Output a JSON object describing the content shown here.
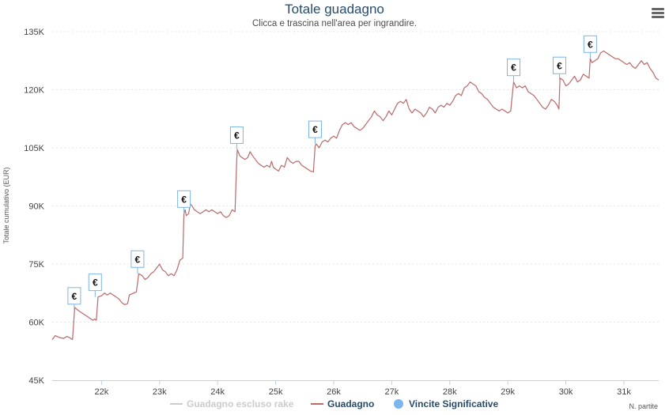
{
  "chart_data": {
    "type": "line",
    "title": "Totale guadagno",
    "subtitle": "Clicca e trascina nell'area per ingrandire.",
    "ylabel": "Totale cumulativo (EUR)",
    "xlabel": "N. partite",
    "ylim": [
      45000,
      135000
    ],
    "xlim": [
      21150,
      31600
    ],
    "y_ticks": [
      "45K",
      "60K",
      "75K",
      "90K",
      "105K",
      "120K",
      "135K"
    ],
    "y_tick_values": [
      45000,
      60000,
      75000,
      90000,
      105000,
      120000,
      135000
    ],
    "x_ticks": [
      "22k",
      "23k",
      "24k",
      "25k",
      "26k",
      "27k",
      "28k",
      "29k",
      "30k",
      "31k"
    ],
    "x_tick_values": [
      22000,
      23000,
      24000,
      25000,
      26000,
      27000,
      28000,
      29000,
      30000,
      31000
    ],
    "grid": "horizontal dashed",
    "legend_position": "bottom",
    "series": [
      {
        "name": "Guadagno escluso rake",
        "color": "#cccccc",
        "hidden": true,
        "values": []
      },
      {
        "name": "Guadagno",
        "color": "#b96a6a",
        "points": [
          [
            21150,
            55500
          ],
          [
            21200,
            56500
          ],
          [
            21280,
            56000
          ],
          [
            21350,
            55800
          ],
          [
            21400,
            56300
          ],
          [
            21450,
            56000
          ],
          [
            21500,
            55500
          ],
          [
            21530,
            62000
          ],
          [
            21540,
            63800
          ],
          [
            21600,
            63000
          ],
          [
            21650,
            62500
          ],
          [
            21700,
            62000
          ],
          [
            21750,
            61500
          ],
          [
            21800,
            61000
          ],
          [
            21850,
            60500
          ],
          [
            21880,
            60800
          ],
          [
            21910,
            60500
          ],
          [
            21940,
            66500
          ],
          [
            22000,
            66800
          ],
          [
            22050,
            67500
          ],
          [
            22100,
            67000
          ],
          [
            22150,
            67500
          ],
          [
            22200,
            67000
          ],
          [
            22250,
            66500
          ],
          [
            22300,
            66000
          ],
          [
            22350,
            65000
          ],
          [
            22400,
            64500
          ],
          [
            22450,
            64800
          ],
          [
            22480,
            67000
          ],
          [
            22550,
            67500
          ],
          [
            22600,
            67800
          ],
          [
            22620,
            70000
          ],
          [
            22640,
            72500
          ],
          [
            22700,
            72000
          ],
          [
            22750,
            71000
          ],
          [
            22800,
            71500
          ],
          [
            22850,
            72500
          ],
          [
            22900,
            73000
          ],
          [
            22950,
            74000
          ],
          [
            23000,
            75000
          ],
          [
            23050,
            73500
          ],
          [
            23100,
            73000
          ],
          [
            23150,
            72000
          ],
          [
            23200,
            72500
          ],
          [
            23250,
            72000
          ],
          [
            23300,
            73500
          ],
          [
            23350,
            76000
          ],
          [
            23400,
            76500
          ],
          [
            23420,
            88000
          ],
          [
            23440,
            89000
          ],
          [
            23460,
            87500
          ],
          [
            23500,
            88000
          ],
          [
            23530,
            90500
          ],
          [
            23560,
            90000
          ],
          [
            23600,
            89000
          ],
          [
            23650,
            88500
          ],
          [
            23700,
            88000
          ],
          [
            23750,
            88500
          ],
          [
            23800,
            89000
          ],
          [
            23850,
            88500
          ],
          [
            23900,
            89000
          ],
          [
            23950,
            88500
          ],
          [
            24000,
            88000
          ],
          [
            24050,
            88500
          ],
          [
            24100,
            87500
          ],
          [
            24150,
            87000
          ],
          [
            24200,
            87500
          ],
          [
            24250,
            89000
          ],
          [
            24300,
            88500
          ],
          [
            24330,
            102000
          ],
          [
            24340,
            104500
          ],
          [
            24380,
            103000
          ],
          [
            24420,
            102500
          ],
          [
            24470,
            102000
          ],
          [
            24520,
            102500
          ],
          [
            24560,
            104000
          ],
          [
            24600,
            103000
          ],
          [
            24650,
            102000
          ],
          [
            24700,
            101000
          ],
          [
            24750,
            100500
          ],
          [
            24800,
            100000
          ],
          [
            24850,
            100500
          ],
          [
            24900,
            100000
          ],
          [
            24930,
            101500
          ],
          [
            24960,
            100000
          ],
          [
            25000,
            99500
          ],
          [
            25050,
            99000
          ],
          [
            25100,
            100500
          ],
          [
            25150,
            100000
          ],
          [
            25200,
            102500
          ],
          [
            25250,
            101500
          ],
          [
            25300,
            101000
          ],
          [
            25350,
            101500
          ],
          [
            25400,
            101500
          ],
          [
            25450,
            100500
          ],
          [
            25500,
            100000
          ],
          [
            25550,
            99500
          ],
          [
            25600,
            99000
          ],
          [
            25650,
            98800
          ],
          [
            25680,
            105500
          ],
          [
            25700,
            106000
          ],
          [
            25750,
            105000
          ],
          [
            25800,
            106500
          ],
          [
            25850,
            107000
          ],
          [
            25900,
            106500
          ],
          [
            25950,
            107500
          ],
          [
            26000,
            108000
          ],
          [
            26050,
            107500
          ],
          [
            26100,
            109500
          ],
          [
            26150,
            111000
          ],
          [
            26200,
            111500
          ],
          [
            26250,
            111000
          ],
          [
            26300,
            111500
          ],
          [
            26350,
            110500
          ],
          [
            26400,
            110000
          ],
          [
            26450,
            109500
          ],
          [
            26500,
            110000
          ],
          [
            26550,
            111000
          ],
          [
            26600,
            112000
          ],
          [
            26650,
            113000
          ],
          [
            26700,
            114500
          ],
          [
            26750,
            113500
          ],
          [
            26800,
            113000
          ],
          [
            26850,
            112000
          ],
          [
            26900,
            113000
          ],
          [
            26950,
            114500
          ],
          [
            27000,
            113500
          ],
          [
            27050,
            115000
          ],
          [
            27100,
            116500
          ],
          [
            27150,
            117000
          ],
          [
            27200,
            116500
          ],
          [
            27250,
            117500
          ],
          [
            27300,
            115000
          ],
          [
            27350,
            114000
          ],
          [
            27400,
            115000
          ],
          [
            27450,
            114500
          ],
          [
            27500,
            114000
          ],
          [
            27550,
            113000
          ],
          [
            27600,
            114000
          ],
          [
            27650,
            115500
          ],
          [
            27700,
            115000
          ],
          [
            27750,
            114000
          ],
          [
            27800,
            115500
          ],
          [
            27850,
            116000
          ],
          [
            27900,
            115500
          ],
          [
            27950,
            116500
          ],
          [
            28000,
            116000
          ],
          [
            28050,
            117000
          ],
          [
            28100,
            118500
          ],
          [
            28150,
            119000
          ],
          [
            28200,
            118500
          ],
          [
            28250,
            120500
          ],
          [
            28300,
            121000
          ],
          [
            28350,
            122000
          ],
          [
            28400,
            121500
          ],
          [
            28450,
            121000
          ],
          [
            28500,
            119500
          ],
          [
            28550,
            119000
          ],
          [
            28600,
            118000
          ],
          [
            28650,
            117500
          ],
          [
            28700,
            116500
          ],
          [
            28750,
            115500
          ],
          [
            28800,
            115000
          ],
          [
            28850,
            114500
          ],
          [
            28900,
            115000
          ],
          [
            28950,
            114500
          ],
          [
            29000,
            114000
          ],
          [
            29050,
            114500
          ],
          [
            29100,
            122000
          ],
          [
            29150,
            120500
          ],
          [
            29200,
            121000
          ],
          [
            29250,
            120500
          ],
          [
            29300,
            121000
          ],
          [
            29350,
            119500
          ],
          [
            29400,
            119000
          ],
          [
            29450,
            118500
          ],
          [
            29500,
            117500
          ],
          [
            29550,
            116500
          ],
          [
            29600,
            115500
          ],
          [
            29650,
            115000
          ],
          [
            29700,
            116000
          ],
          [
            29750,
            117500
          ],
          [
            29800,
            117000
          ],
          [
            29850,
            116000
          ],
          [
            29880,
            115000
          ],
          [
            29900,
            123000
          ],
          [
            29950,
            122500
          ],
          [
            30000,
            121000
          ],
          [
            30050,
            121500
          ],
          [
            30100,
            122500
          ],
          [
            30150,
            123500
          ],
          [
            30200,
            122000
          ],
          [
            30250,
            122500
          ],
          [
            30300,
            124000
          ],
          [
            30350,
            123500
          ],
          [
            30400,
            123000
          ],
          [
            30420,
            128000
          ],
          [
            30450,
            127000
          ],
          [
            30500,
            127500
          ],
          [
            30550,
            128000
          ],
          [
            30600,
            129500
          ],
          [
            30650,
            130000
          ],
          [
            30700,
            129500
          ],
          [
            30750,
            129000
          ],
          [
            30800,
            128500
          ],
          [
            30850,
            128000
          ],
          [
            30900,
            128000
          ],
          [
            30950,
            127500
          ],
          [
            31000,
            127000
          ],
          [
            31050,
            126500
          ],
          [
            31100,
            127000
          ],
          [
            31150,
            126000
          ],
          [
            31200,
            125500
          ],
          [
            31250,
            126500
          ],
          [
            31300,
            127500
          ],
          [
            31350,
            126500
          ],
          [
            31400,
            127000
          ],
          [
            31450,
            125500
          ],
          [
            31500,
            124500
          ],
          [
            31550,
            123000
          ],
          [
            31600,
            122500
          ]
        ]
      },
      {
        "name": "Vincite Significative",
        "color": "#7cb5ec",
        "flag_label": "€",
        "flags": [
          [
            21530,
            63000
          ],
          [
            21890,
            66500
          ],
          [
            22620,
            72500
          ],
          [
            23420,
            88000
          ],
          [
            24330,
            104500
          ],
          [
            25680,
            106000
          ],
          [
            29100,
            122000
          ],
          [
            29890,
            122500
          ],
          [
            30420,
            128000
          ]
        ]
      }
    ]
  }
}
